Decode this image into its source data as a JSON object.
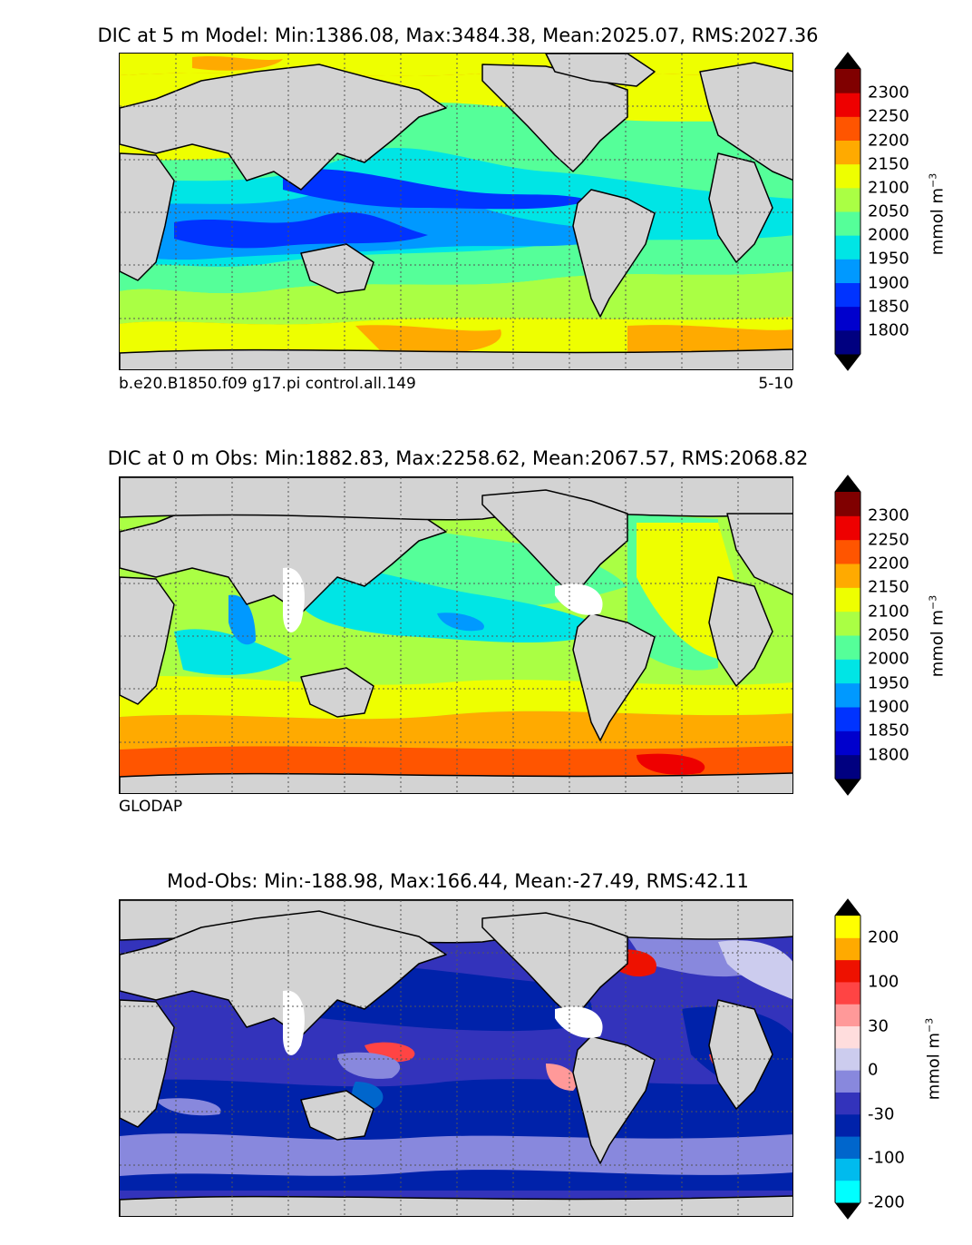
{
  "panels": [
    {
      "title": "DIC at 5 m Model: Min:1386.08, Max:3484.38, Mean:2025.07, RMS:2027.36",
      "left_note": "b.e20.B1850.f09 g17.pi control.all.149",
      "right_note": "5-10",
      "colorbar": {
        "ticks": [
          "2300",
          "2250",
          "2200",
          "2150",
          "2100",
          "2050",
          "2000",
          "1950",
          "1900",
          "1850",
          "1800"
        ],
        "colors": [
          "#000080",
          "#0000cd",
          "#0033ff",
          "#0099ff",
          "#00e5e5",
          "#55ff99",
          "#aaff44",
          "#eeff00",
          "#ffaa00",
          "#ff5500",
          "#ee0000",
          "#800000"
        ],
        "unit": "mmol m",
        "unit_exp": "−3"
      }
    },
    {
      "title": "DIC at 0 m Obs: Min:1882.83, Max:2258.62, Mean:2067.57, RMS:2068.82",
      "left_note": "GLODAP",
      "right_note": "",
      "colorbar": {
        "ticks": [
          "2300",
          "2250",
          "2200",
          "2150",
          "2100",
          "2050",
          "2000",
          "1950",
          "1900",
          "1850",
          "1800"
        ],
        "colors": [
          "#000080",
          "#0000cd",
          "#0033ff",
          "#0099ff",
          "#00e5e5",
          "#55ff99",
          "#aaff44",
          "#eeff00",
          "#ffaa00",
          "#ff5500",
          "#ee0000",
          "#800000"
        ],
        "unit": "mmol m",
        "unit_exp": "−3"
      }
    },
    {
      "title": "Mod-Obs: Min:-188.98, Max:166.44, Mean:-27.49, RMS:42.11",
      "left_note": "",
      "right_note": "",
      "colorbar": {
        "ticks": [
          "200",
          "100",
          "30",
          "0",
          "-30",
          "-100",
          "-200"
        ],
        "colors": [
          "#00ffff",
          "#00bbee",
          "#0066cc",
          "#0022aa",
          "#3333bb",
          "#8888dd",
          "#ccccee",
          "#ffdddd",
          "#ff9999",
          "#ff4444",
          "#ee1100",
          "#ffaa00",
          "#ffff00"
        ],
        "unit": "mmol m",
        "unit_exp": "−3"
      }
    }
  ],
  "colors": {
    "land": "#d3d3d3",
    "grid": "#555555"
  }
}
